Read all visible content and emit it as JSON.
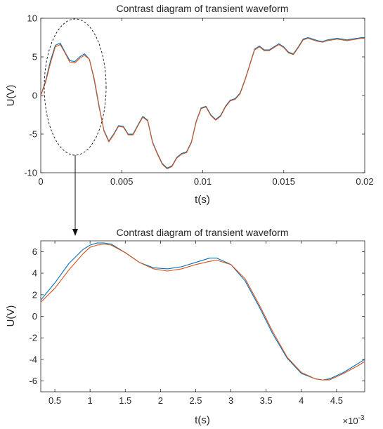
{
  "colors": {
    "series_1": "#0072BD",
    "series_2": "#D95319",
    "axes": "#262626",
    "background": "#ffffff"
  },
  "chart_data": [
    {
      "type": "line",
      "title": "Contrast diagram of transient waveform",
      "xlabel": "t(s)",
      "ylabel": "U(V)",
      "xlim": [
        0,
        0.02
      ],
      "ylim": [
        -10,
        10
      ],
      "xticks": [
        0,
        0.005,
        0.01,
        0.015,
        0.02
      ],
      "xtick_labels": [
        "0",
        "0.005",
        "0.01",
        "0.015",
        "0.02"
      ],
      "yticks": [
        -10,
        -5,
        0,
        5,
        10
      ],
      "ytick_labels": [
        "-10",
        "-5",
        "0",
        "5",
        "10"
      ],
      "grid": false,
      "legend": "none",
      "annotation": "dashed ellipse around 0 to 0.004 s with arrow to zoomed panel",
      "series": [
        {
          "color": "#0072BD",
          "x": [
            0,
            0.0003,
            0.0006,
            0.0009,
            0.0012,
            0.0015,
            0.0018,
            0.0021,
            0.0024,
            0.0027,
            0.003,
            0.0033,
            0.0036,
            0.0039,
            0.0042,
            0.0045,
            0.0048,
            0.0051,
            0.0054,
            0.0057,
            0.006,
            0.0063,
            0.0066,
            0.0069,
            0.0072,
            0.0075,
            0.0078,
            0.0081,
            0.0084,
            0.0087,
            0.009,
            0.0093,
            0.0096,
            0.0099,
            0.0102,
            0.0105,
            0.0108,
            0.0111,
            0.0114,
            0.0117,
            0.012,
            0.0123,
            0.0126,
            0.0129,
            0.0132,
            0.0135,
            0.0138,
            0.0141,
            0.0144,
            0.0147,
            0.015,
            0.0153,
            0.0156,
            0.0159,
            0.0162,
            0.0165,
            0.0168,
            0.0171,
            0.0174,
            0.0177,
            0.018,
            0.0183,
            0.0186,
            0.0189,
            0.0192,
            0.0195,
            0.0198,
            0.02
          ],
          "y": [
            0,
            1.9,
            4.5,
            6.5,
            6.8,
            5.6,
            4.5,
            4.4,
            5.0,
            5.4,
            4.7,
            2.0,
            -1.5,
            -4.5,
            -5.9,
            -5.0,
            -3.9,
            -4.0,
            -5.0,
            -5.0,
            -3.8,
            -2.7,
            -3.2,
            -6.0,
            -7.5,
            -8.8,
            -9.4,
            -9.1,
            -8.0,
            -7.5,
            -7.3,
            -6.0,
            -3.3,
            -1.6,
            -1.4,
            -2.5,
            -3.1,
            -2.6,
            -1.4,
            -0.6,
            -0.4,
            0.3,
            2.0,
            4.0,
            6.0,
            6.4,
            5.9,
            5.9,
            6.3,
            6.7,
            6.3,
            5.6,
            5.4,
            6.3,
            7.3,
            7.5,
            7.3,
            7.1,
            7.0,
            7.2,
            7.3,
            7.4,
            7.3,
            7.2,
            7.3,
            7.4,
            7.5,
            7.5
          ]
        },
        {
          "color": "#D95319",
          "x": [
            0,
            0.0003,
            0.0006,
            0.0009,
            0.0012,
            0.0015,
            0.0018,
            0.0021,
            0.0024,
            0.0027,
            0.003,
            0.0033,
            0.0036,
            0.0039,
            0.0042,
            0.0045,
            0.0048,
            0.0051,
            0.0054,
            0.0057,
            0.006,
            0.0063,
            0.0066,
            0.0069,
            0.0072,
            0.0075,
            0.0078,
            0.0081,
            0.0084,
            0.0087,
            0.009,
            0.0093,
            0.0096,
            0.0099,
            0.0102,
            0.0105,
            0.0108,
            0.0111,
            0.0114,
            0.0117,
            0.012,
            0.0123,
            0.0126,
            0.0129,
            0.0132,
            0.0135,
            0.0138,
            0.0141,
            0.0144,
            0.0147,
            0.015,
            0.0153,
            0.0156,
            0.0159,
            0.0162,
            0.0165,
            0.0168,
            0.0171,
            0.0174,
            0.0177,
            0.018,
            0.0183,
            0.0186,
            0.0189,
            0.0192,
            0.0195,
            0.0198,
            0.02
          ],
          "y": [
            0,
            1.7,
            4.2,
            6.3,
            6.6,
            5.5,
            4.3,
            4.2,
            4.8,
            5.2,
            4.7,
            2.2,
            -1.3,
            -4.6,
            -6.0,
            -5.1,
            -4.0,
            -4.1,
            -5.1,
            -5.1,
            -3.9,
            -2.8,
            -3.3,
            -6.1,
            -7.6,
            -8.9,
            -9.5,
            -9.2,
            -8.1,
            -7.6,
            -7.4,
            -6.1,
            -3.4,
            -1.7,
            -1.5,
            -2.6,
            -3.2,
            -2.7,
            -1.5,
            -0.7,
            -0.5,
            0.2,
            1.9,
            3.9,
            5.9,
            6.3,
            5.8,
            5.8,
            6.2,
            6.6,
            6.2,
            5.5,
            5.3,
            6.2,
            7.2,
            7.4,
            7.2,
            7.0,
            6.9,
            7.1,
            7.2,
            7.3,
            7.2,
            7.1,
            7.2,
            7.3,
            7.4,
            7.4
          ]
        }
      ]
    },
    {
      "type": "line",
      "title": "Contrast diagram of transient waveform",
      "xlabel": "t(s)",
      "ylabel": "U(V)",
      "xlim": [
        0.3,
        4.9
      ],
      "ylim": [
        -7,
        7
      ],
      "x_multiplier_label": "×10",
      "x_multiplier_exponent": "-3",
      "xticks": [
        0.5,
        1,
        1.5,
        2,
        2.5,
        3,
        3.5,
        4,
        4.5
      ],
      "xtick_labels": [
        "0.5",
        "1",
        "1.5",
        "2",
        "2.5",
        "3",
        "3.5",
        "4",
        "4.5"
      ],
      "yticks": [
        -6,
        -4,
        -2,
        0,
        2,
        4,
        6
      ],
      "ytick_labels": [
        "-6",
        "-4",
        "-2",
        "0",
        "2",
        "4",
        "6"
      ],
      "grid": false,
      "legend": "none",
      "series": [
        {
          "color": "#0072BD",
          "x": [
            0.3,
            0.5,
            0.7,
            0.9,
            1.0,
            1.1,
            1.2,
            1.3,
            1.5,
            1.7,
            1.9,
            2.1,
            2.3,
            2.5,
            2.7,
            2.8,
            3.0,
            3.2,
            3.4,
            3.6,
            3.8,
            4.0,
            4.2,
            4.3,
            4.4,
            4.6,
            4.8,
            4.9
          ],
          "y": [
            1.5,
            3.1,
            4.9,
            6.2,
            6.6,
            6.8,
            6.8,
            6.7,
            5.9,
            5.0,
            4.5,
            4.4,
            4.6,
            5.0,
            5.4,
            5.4,
            4.8,
            3.3,
            0.9,
            -1.7,
            -3.9,
            -5.3,
            -5.8,
            -5.9,
            -5.8,
            -5.2,
            -4.4,
            -4.0
          ]
        },
        {
          "color": "#D95319",
          "x": [
            0.3,
            0.5,
            0.7,
            0.9,
            1.0,
            1.1,
            1.2,
            1.3,
            1.5,
            1.7,
            1.9,
            2.1,
            2.3,
            2.5,
            2.7,
            2.8,
            3.0,
            3.2,
            3.4,
            3.6,
            3.8,
            4.0,
            4.2,
            4.3,
            4.4,
            4.6,
            4.8,
            4.9
          ],
          "y": [
            1.3,
            2.6,
            4.3,
            5.8,
            6.4,
            6.6,
            6.7,
            6.6,
            5.9,
            5.0,
            4.4,
            4.2,
            4.4,
            4.8,
            5.1,
            5.2,
            4.8,
            3.5,
            1.1,
            -1.5,
            -3.8,
            -5.2,
            -5.8,
            -5.9,
            -5.9,
            -5.3,
            -4.6,
            -4.2
          ]
        }
      ]
    }
  ]
}
